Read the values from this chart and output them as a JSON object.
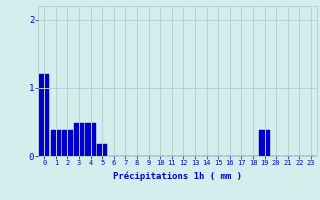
{
  "values": [
    1.2,
    0.38,
    0.38,
    0.48,
    0.48,
    0.18,
    0.0,
    0.0,
    0.0,
    0.0,
    0.0,
    0.0,
    0.0,
    0.0,
    0.0,
    0.0,
    0.0,
    0.0,
    0.0,
    0.38,
    0.0,
    0.0,
    0.0,
    0.0
  ],
  "categories": [
    "0",
    "1",
    "2",
    "3",
    "4",
    "5",
    "6",
    "7",
    "8",
    "9",
    "10",
    "11",
    "12",
    "13",
    "14",
    "15",
    "16",
    "17",
    "18",
    "19",
    "20",
    "21",
    "22",
    "23"
  ],
  "xlabel": "Précipitations 1h ( mm )",
  "ylim": [
    0,
    2.2
  ],
  "yticks": [
    0,
    1,
    2
  ],
  "bar_color": "#0000cc",
  "bar_edge_color": "#0000aa",
  "background_color": "#d4eeee",
  "grid_color": "#b8d0d0",
  "tick_color": "#0000cc",
  "label_color": "#0000cc",
  "tick_fontsize": 5.0,
  "xlabel_fontsize": 6.5,
  "ytick_fontsize": 6.5
}
